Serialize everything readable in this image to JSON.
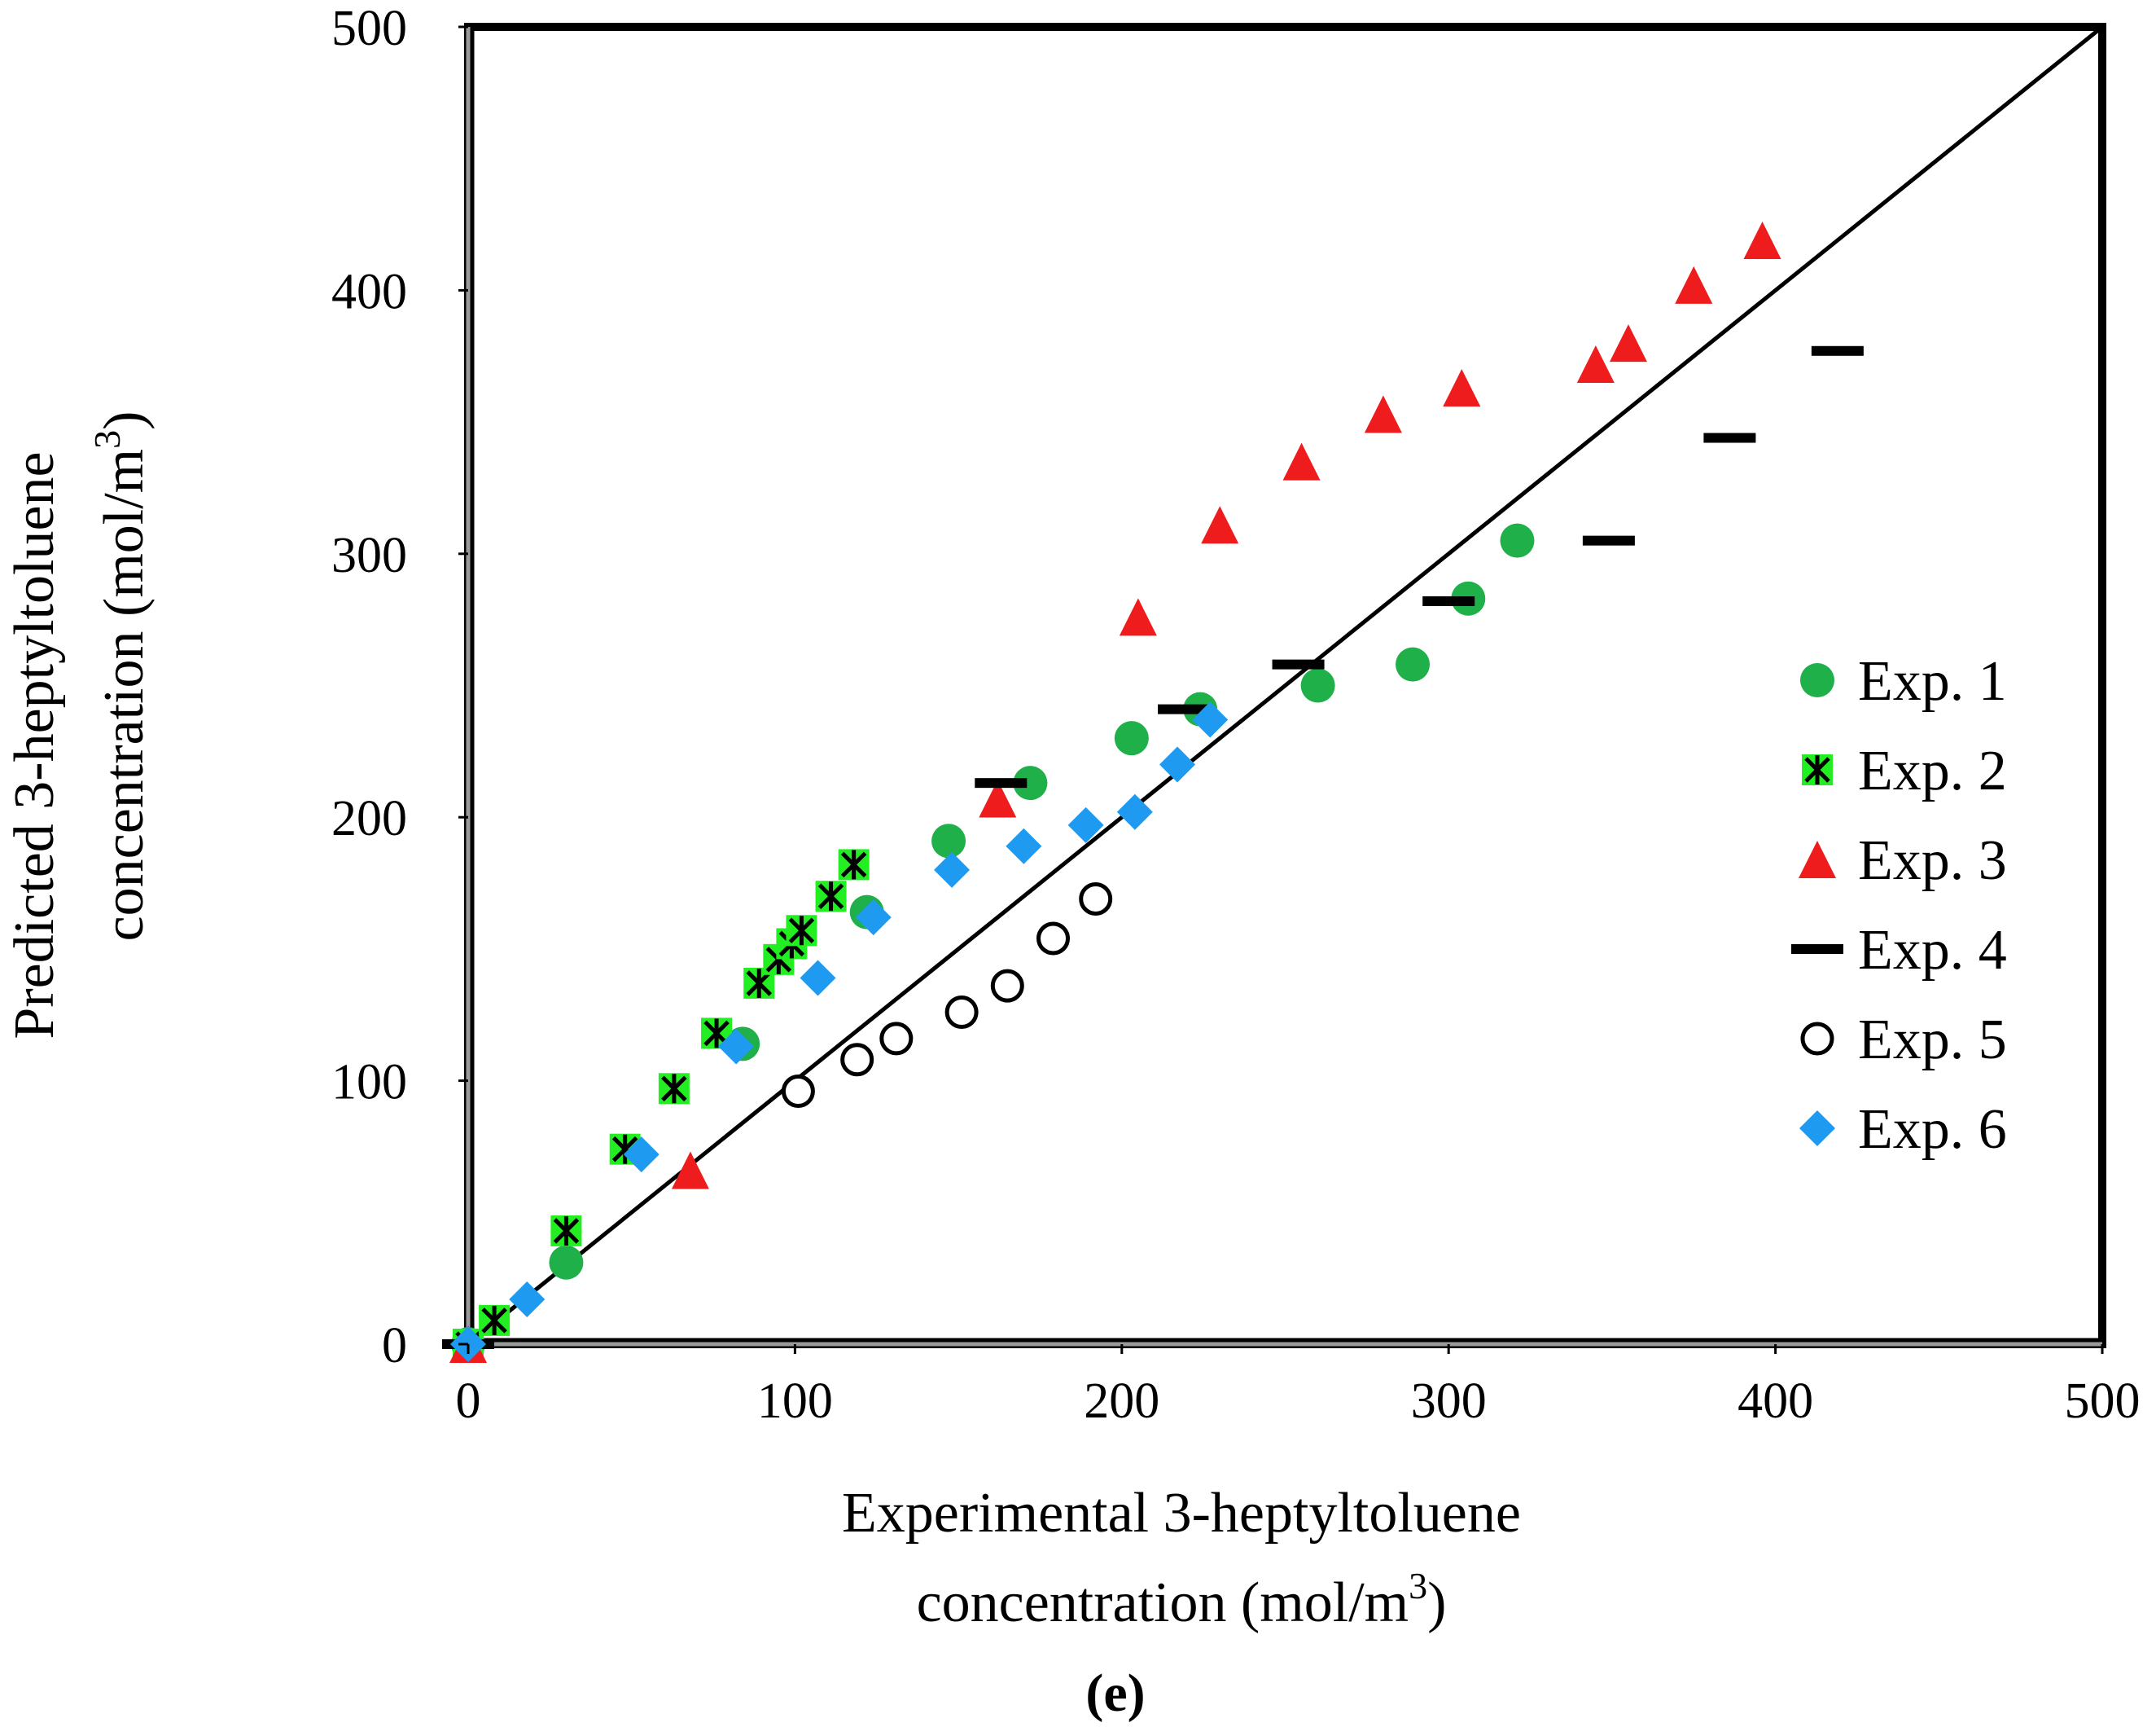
{
  "chart_data": {
    "type": "scatter",
    "title": "",
    "xlabel_line1": "Experimental 3-heptyltoluene",
    "xlabel_line2": "concentration (mol/m",
    "ylabel_line1": "Predicted 3-heptyltoluene",
    "ylabel_line2": "concentration (mol/m",
    "unit_superscript": "3",
    "unit_close": ")",
    "panel_label": "(e)",
    "xlim": [
      0,
      500
    ],
    "ylim": [
      0,
      500
    ],
    "x_ticks": [
      0,
      100,
      200,
      300,
      400,
      500
    ],
    "y_ticks": [
      0,
      100,
      200,
      300,
      400,
      500
    ],
    "grid": false,
    "legend_position": "right",
    "parity_line": {
      "from": [
        0,
        0
      ],
      "to": [
        500,
        500
      ]
    },
    "series": [
      {
        "name": "Exp. 1",
        "marker": "circle",
        "color": "#1fb04a",
        "points": [
          [
            0,
            0
          ],
          [
            30,
            31
          ],
          [
            84,
            114
          ],
          [
            122,
            164
          ],
          [
            147,
            191
          ],
          [
            172,
            213
          ],
          [
            203,
            230
          ],
          [
            224,
            241
          ],
          [
            260,
            250
          ],
          [
            289,
            258
          ],
          [
            306,
            283
          ],
          [
            321,
            305
          ]
        ]
      },
      {
        "name": "Exp. 2",
        "marker": "square-star",
        "color": "#22ee22",
        "points": [
          [
            0,
            0
          ],
          [
            8,
            9
          ],
          [
            30,
            43
          ],
          [
            48,
            74
          ],
          [
            63,
            97
          ],
          [
            76,
            118
          ],
          [
            89,
            137
          ],
          [
            95,
            146
          ],
          [
            99,
            152
          ],
          [
            102,
            157
          ],
          [
            111,
            170
          ],
          [
            118,
            182
          ]
        ]
      },
      {
        "name": "Exp. 3",
        "marker": "triangle",
        "color": "#ee1c1c",
        "points": [
          [
            0,
            0
          ],
          [
            68,
            66
          ],
          [
            162,
            207
          ],
          [
            205,
            276
          ],
          [
            230,
            311
          ],
          [
            255,
            335
          ],
          [
            280,
            353
          ],
          [
            304,
            363
          ],
          [
            345,
            372
          ],
          [
            355,
            380
          ],
          [
            375,
            402
          ],
          [
            396,
            419
          ]
        ]
      },
      {
        "name": "Exp. 4",
        "marker": "dash",
        "color": "#000000",
        "points": [
          [
            0,
            0
          ],
          [
            163,
            213
          ],
          [
            219,
            241
          ],
          [
            254,
            258
          ],
          [
            300,
            282
          ],
          [
            349,
            305
          ],
          [
            386,
            344
          ],
          [
            419,
            377
          ]
        ]
      },
      {
        "name": "Exp. 5",
        "marker": "open-circle",
        "color": "#000000",
        "points": [
          [
            101,
            96
          ],
          [
            119,
            108
          ],
          [
            131,
            116
          ],
          [
            151,
            126
          ],
          [
            165,
            136
          ],
          [
            179,
            154
          ],
          [
            192,
            169
          ]
        ]
      },
      {
        "name": "Exp. 6",
        "marker": "diamond",
        "color": "#1e9bf0",
        "points": [
          [
            0,
            0
          ],
          [
            18,
            17
          ],
          [
            53,
            72
          ],
          [
            82,
            113
          ],
          [
            107,
            139
          ],
          [
            124,
            162
          ],
          [
            148,
            180
          ],
          [
            170,
            189
          ],
          [
            189,
            197
          ],
          [
            204,
            202
          ],
          [
            217,
            220
          ],
          [
            227,
            237
          ]
        ]
      }
    ]
  }
}
